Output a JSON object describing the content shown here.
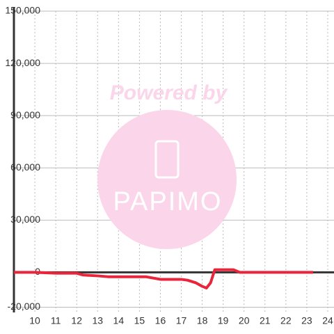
{
  "chart_data": {
    "type": "line",
    "watermark": {
      "title": "Powered by",
      "logo": "PAPIMO"
    },
    "series": [
      {
        "color": "#e8253a",
        "x": [
          9,
          10,
          11,
          12,
          12.3,
          13,
          13.5,
          14,
          15,
          15.3,
          16,
          16.5,
          17,
          17.3,
          17.7,
          18,
          18.2,
          18.4,
          18.6,
          19,
          19.5,
          19.8,
          20,
          21,
          22,
          23,
          23.3
        ],
        "values": [
          0,
          0,
          -500,
          -500,
          -1500,
          -2000,
          -2500,
          -2500,
          -2500,
          -2500,
          -4000,
          -4000,
          -4000,
          -4500,
          -6000,
          -8000,
          -9000,
          -6000,
          1500,
          1500,
          1500,
          0,
          0,
          0,
          0,
          0,
          0
        ]
      }
    ],
    "xlim": [
      9,
      24.3
    ],
    "xticks": [
      10,
      11,
      12,
      13,
      14,
      15,
      16,
      17,
      18,
      19,
      20,
      21,
      22,
      23,
      24
    ],
    "ylim": [
      -23000,
      150000
    ],
    "yticks": [
      {
        "value": -20000,
        "label": "-20,000"
      },
      0,
      {
        "value": 30000,
        "label": "30,000"
      },
      {
        "value": 60000,
        "label": "60,000"
      },
      {
        "value": 90000,
        "label": "90,000"
      },
      {
        "value": 120000,
        "label": "120,000"
      },
      {
        "value": 150000,
        "label": "150,000"
      }
    ],
    "grid": true
  }
}
